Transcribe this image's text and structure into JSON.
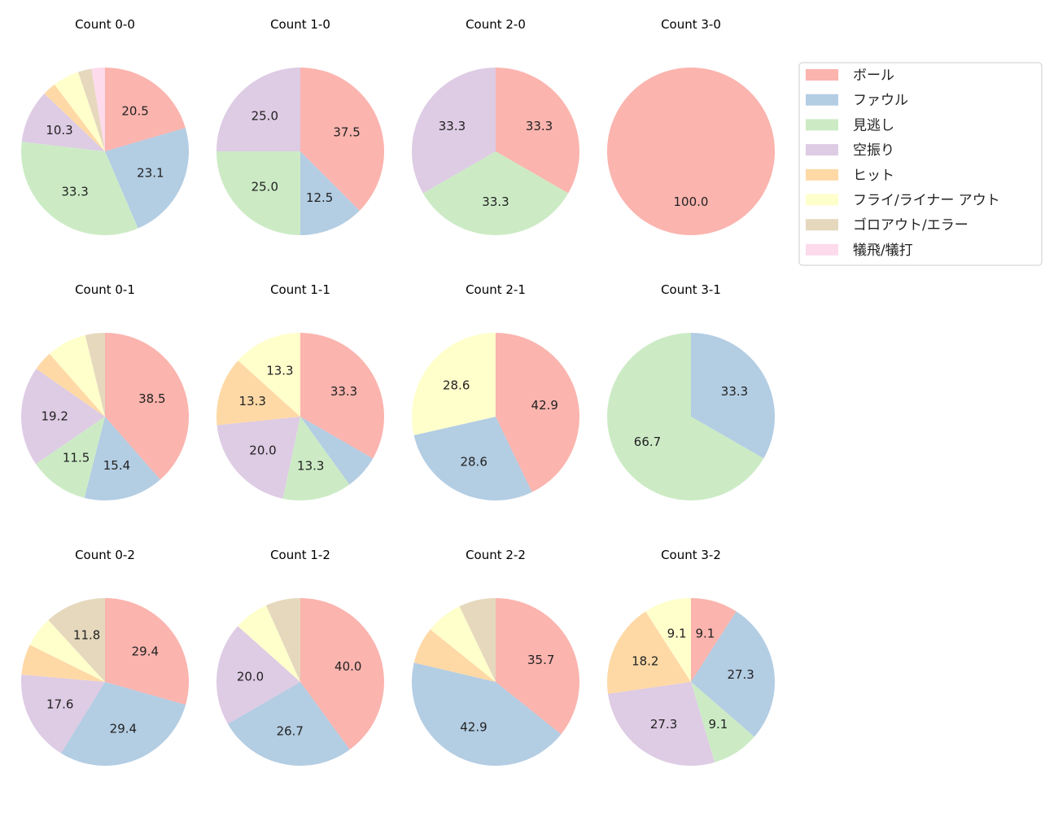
{
  "chart_data": {
    "type": "pie",
    "legend_placement": "top-right",
    "categories": [
      "ボール",
      "ファウル",
      "見逃し",
      "空振り",
      "ヒット",
      "フライ/ライナー アウト",
      "ゴロアウト/エラー",
      "犠飛/犠打"
    ],
    "colors": [
      "#fbb4ae",
      "#b3cde3",
      "#ccebc5",
      "#decbe4",
      "#fed9a6",
      "#ffffcc",
      "#e5d8bd",
      "#fddaec"
    ],
    "charts": [
      {
        "title": "Count 0-0",
        "values": [
          20.5,
          23.1,
          33.3,
          10.3,
          2.6,
          5.1,
          2.6,
          2.6
        ]
      },
      {
        "title": "Count 1-0",
        "values": [
          37.5,
          12.5,
          25.0,
          25.0,
          0,
          0,
          0,
          0
        ]
      },
      {
        "title": "Count 2-0",
        "values": [
          33.3,
          0,
          33.3,
          33.3,
          0,
          0,
          0,
          0
        ]
      },
      {
        "title": "Count 3-0",
        "values": [
          100.0,
          0,
          0,
          0,
          0,
          0,
          0,
          0
        ]
      },
      {
        "title": "Count 0-1",
        "values": [
          38.5,
          15.4,
          11.5,
          19.2,
          3.8,
          7.7,
          3.8,
          0
        ]
      },
      {
        "title": "Count 1-1",
        "values": [
          33.3,
          6.7,
          13.3,
          20.0,
          13.3,
          13.3,
          0,
          0
        ]
      },
      {
        "title": "Count 2-1",
        "values": [
          42.9,
          28.6,
          0,
          0,
          0,
          28.6,
          0,
          0
        ]
      },
      {
        "title": "Count 3-1",
        "values": [
          0,
          33.3,
          66.7,
          0,
          0,
          0,
          0,
          0
        ]
      },
      {
        "title": "Count 0-2",
        "values": [
          29.4,
          29.4,
          0,
          17.6,
          5.9,
          5.9,
          11.8,
          0
        ]
      },
      {
        "title": "Count 1-2",
        "values": [
          40.0,
          26.7,
          0,
          20.0,
          0,
          6.7,
          6.7,
          0
        ]
      },
      {
        "title": "Count 2-2",
        "values": [
          35.7,
          42.9,
          0,
          0,
          7.1,
          7.1,
          7.1,
          0
        ]
      },
      {
        "title": "Count 3-2",
        "values": [
          9.1,
          27.3,
          9.1,
          27.3,
          18.2,
          9.1,
          0,
          0
        ]
      }
    ]
  }
}
